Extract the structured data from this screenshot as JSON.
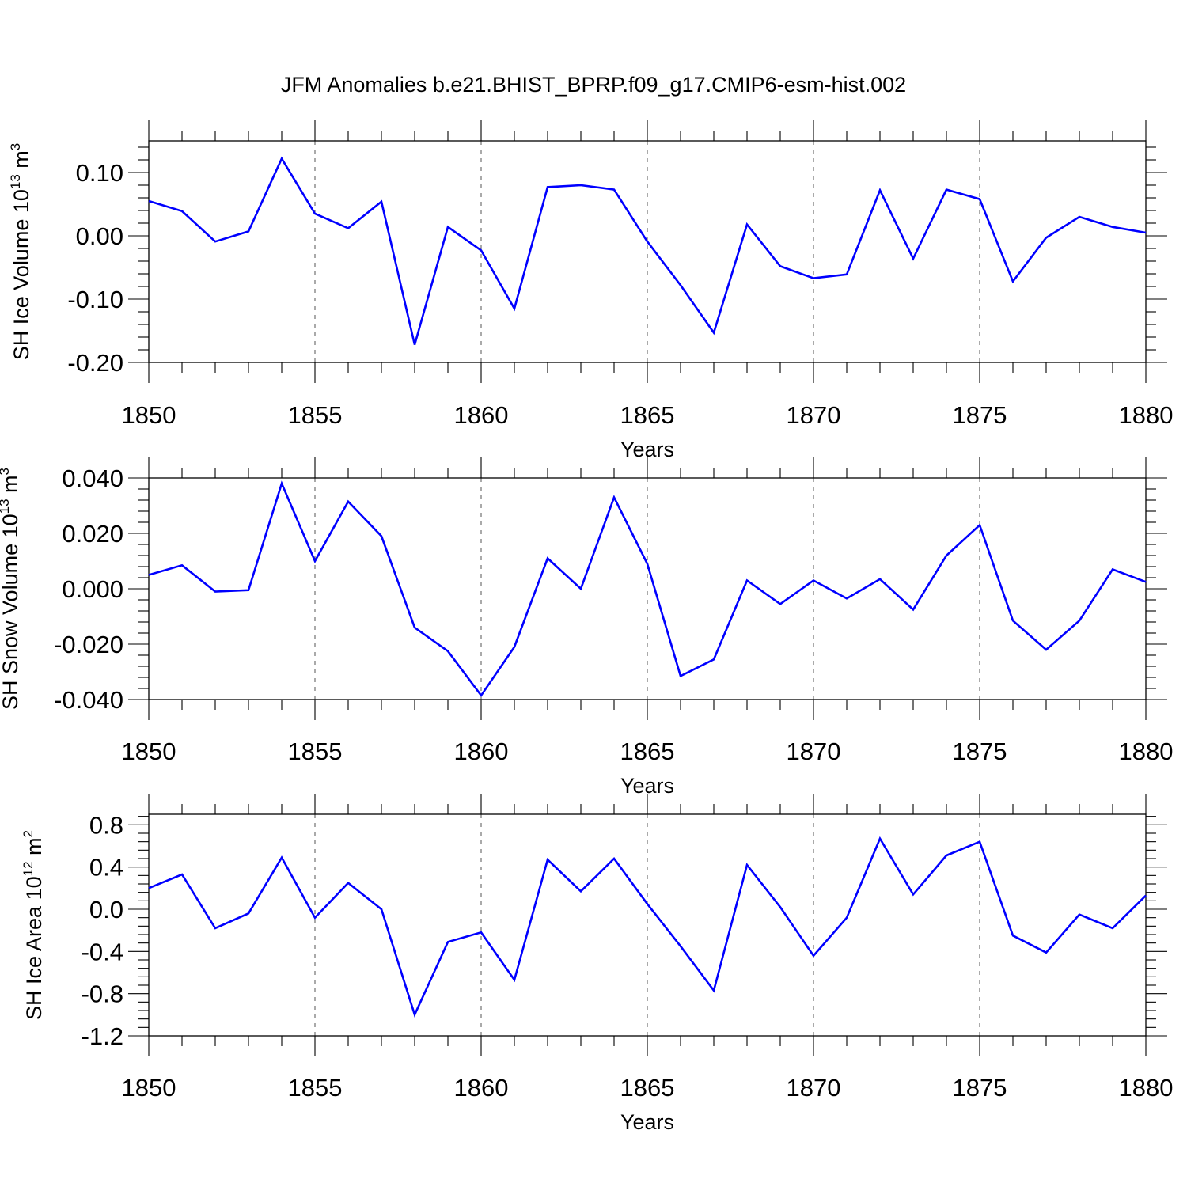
{
  "title": "JFM Anomalies b.e21.BHIST_BPRP.f09_g17.CMIP6-esm-hist.002",
  "colors": {
    "line": "#0000ff",
    "axis": "#000000",
    "grid": "#555555"
  },
  "chart_data": [
    {
      "type": "line",
      "xlabel": "Years",
      "ylabel": {
        "text": "SH Ice Volume 10",
        "sup1": "13",
        "mid": " m",
        "sup2": "3"
      },
      "x": [
        1850,
        1851,
        1852,
        1853,
        1854,
        1855,
        1856,
        1857,
        1858,
        1859,
        1860,
        1861,
        1862,
        1863,
        1864,
        1865,
        1866,
        1867,
        1868,
        1869,
        1870,
        1871,
        1872,
        1873,
        1874,
        1875,
        1876,
        1877,
        1878,
        1879,
        1880
      ],
      "series": [
        {
          "values": [
            0.055,
            0.039,
            -0.009,
            0.007,
            0.122,
            0.035,
            0.012,
            0.054,
            -0.172,
            0.014,
            -0.023,
            -0.115,
            0.077,
            0.08,
            0.073,
            -0.009,
            -0.078,
            -0.153,
            0.018,
            -0.048,
            -0.067,
            -0.061,
            0.072,
            -0.036,
            0.073,
            0.058,
            -0.072,
            -0.003,
            0.03,
            0.014,
            0.005
          ]
        }
      ],
      "xlim": [
        1850,
        1880
      ],
      "ylim": [
        -0.2,
        0.15
      ],
      "xticks": [
        "1850",
        "1855",
        "1860",
        "1865",
        "1870",
        "1875",
        "1880"
      ],
      "yticks": [
        {
          "value": -0.2,
          "label": "-0.20"
        },
        {
          "value": -0.1,
          "label": "-0.10"
        },
        {
          "value": 0.0,
          "label": "0.00"
        },
        {
          "value": 0.1,
          "label": "0.10"
        }
      ],
      "grid": "vertical dashed at major x ticks"
    },
    {
      "type": "line",
      "xlabel": "Years",
      "ylabel": {
        "text": "SH Snow Volume 10",
        "sup1": "13",
        "mid": " m",
        "sup2": "3"
      },
      "x": [
        1850,
        1851,
        1852,
        1853,
        1854,
        1855,
        1856,
        1857,
        1858,
        1859,
        1860,
        1861,
        1862,
        1863,
        1864,
        1865,
        1866,
        1867,
        1868,
        1869,
        1870,
        1871,
        1872,
        1873,
        1874,
        1875,
        1876,
        1877,
        1878,
        1879,
        1880
      ],
      "series": [
        {
          "values": [
            0.005,
            0.0085,
            -0.001,
            -0.0005,
            0.038,
            0.01,
            0.0315,
            0.019,
            -0.014,
            -0.0225,
            -0.0385,
            -0.021,
            0.011,
            0.0,
            0.033,
            0.009,
            -0.0315,
            -0.0255,
            0.003,
            -0.0055,
            0.003,
            -0.0035,
            0.0035,
            -0.0075,
            0.012,
            0.023,
            -0.0115,
            -0.022,
            -0.0115,
            0.007,
            0.0025
          ]
        }
      ],
      "xlim": [
        1850,
        1880
      ],
      "ylim": [
        -0.04,
        0.04
      ],
      "xticks": [
        "1850",
        "1855",
        "1860",
        "1865",
        "1870",
        "1875",
        "1880"
      ],
      "yticks": [
        {
          "value": -0.04,
          "label": "-0.040"
        },
        {
          "value": -0.02,
          "label": "-0.020"
        },
        {
          "value": 0.0,
          "label": "0.000"
        },
        {
          "value": 0.02,
          "label": "0.020"
        },
        {
          "value": 0.04,
          "label": "0.040"
        }
      ],
      "grid": "vertical dashed at major x ticks"
    },
    {
      "type": "line",
      "xlabel": "Years",
      "ylabel": {
        "text": "SH Ice Area 10",
        "sup1": "12",
        "mid": " m",
        "sup2": "2"
      },
      "x": [
        1850,
        1851,
        1852,
        1853,
        1854,
        1855,
        1856,
        1857,
        1858,
        1859,
        1860,
        1861,
        1862,
        1863,
        1864,
        1865,
        1866,
        1867,
        1868,
        1869,
        1870,
        1871,
        1872,
        1873,
        1874,
        1875,
        1876,
        1877,
        1878,
        1879,
        1880
      ],
      "series": [
        {
          "values": [
            0.2,
            0.33,
            -0.18,
            -0.04,
            0.49,
            -0.08,
            0.25,
            0.0,
            -1.0,
            -0.31,
            -0.22,
            -0.67,
            0.47,
            0.17,
            0.48,
            0.05,
            -0.35,
            -0.77,
            0.42,
            0.02,
            -0.44,
            -0.08,
            0.67,
            0.14,
            0.51,
            0.64,
            -0.25,
            -0.41,
            -0.05,
            -0.18,
            0.13
          ]
        }
      ],
      "xlim": [
        1850,
        1880
      ],
      "ylim": [
        -1.2,
        0.9
      ],
      "xticks": [
        "1850",
        "1855",
        "1860",
        "1865",
        "1870",
        "1875",
        "1880"
      ],
      "yticks": [
        {
          "value": -1.2,
          "label": "-1.2"
        },
        {
          "value": -0.8,
          "label": "-0.8"
        },
        {
          "value": -0.4,
          "label": "-0.4"
        },
        {
          "value": 0.0,
          "label": "0.0"
        },
        {
          "value": 0.4,
          "label": "0.4"
        },
        {
          "value": 0.8,
          "label": "0.8"
        }
      ],
      "grid": "vertical dashed at major x ticks"
    }
  ]
}
